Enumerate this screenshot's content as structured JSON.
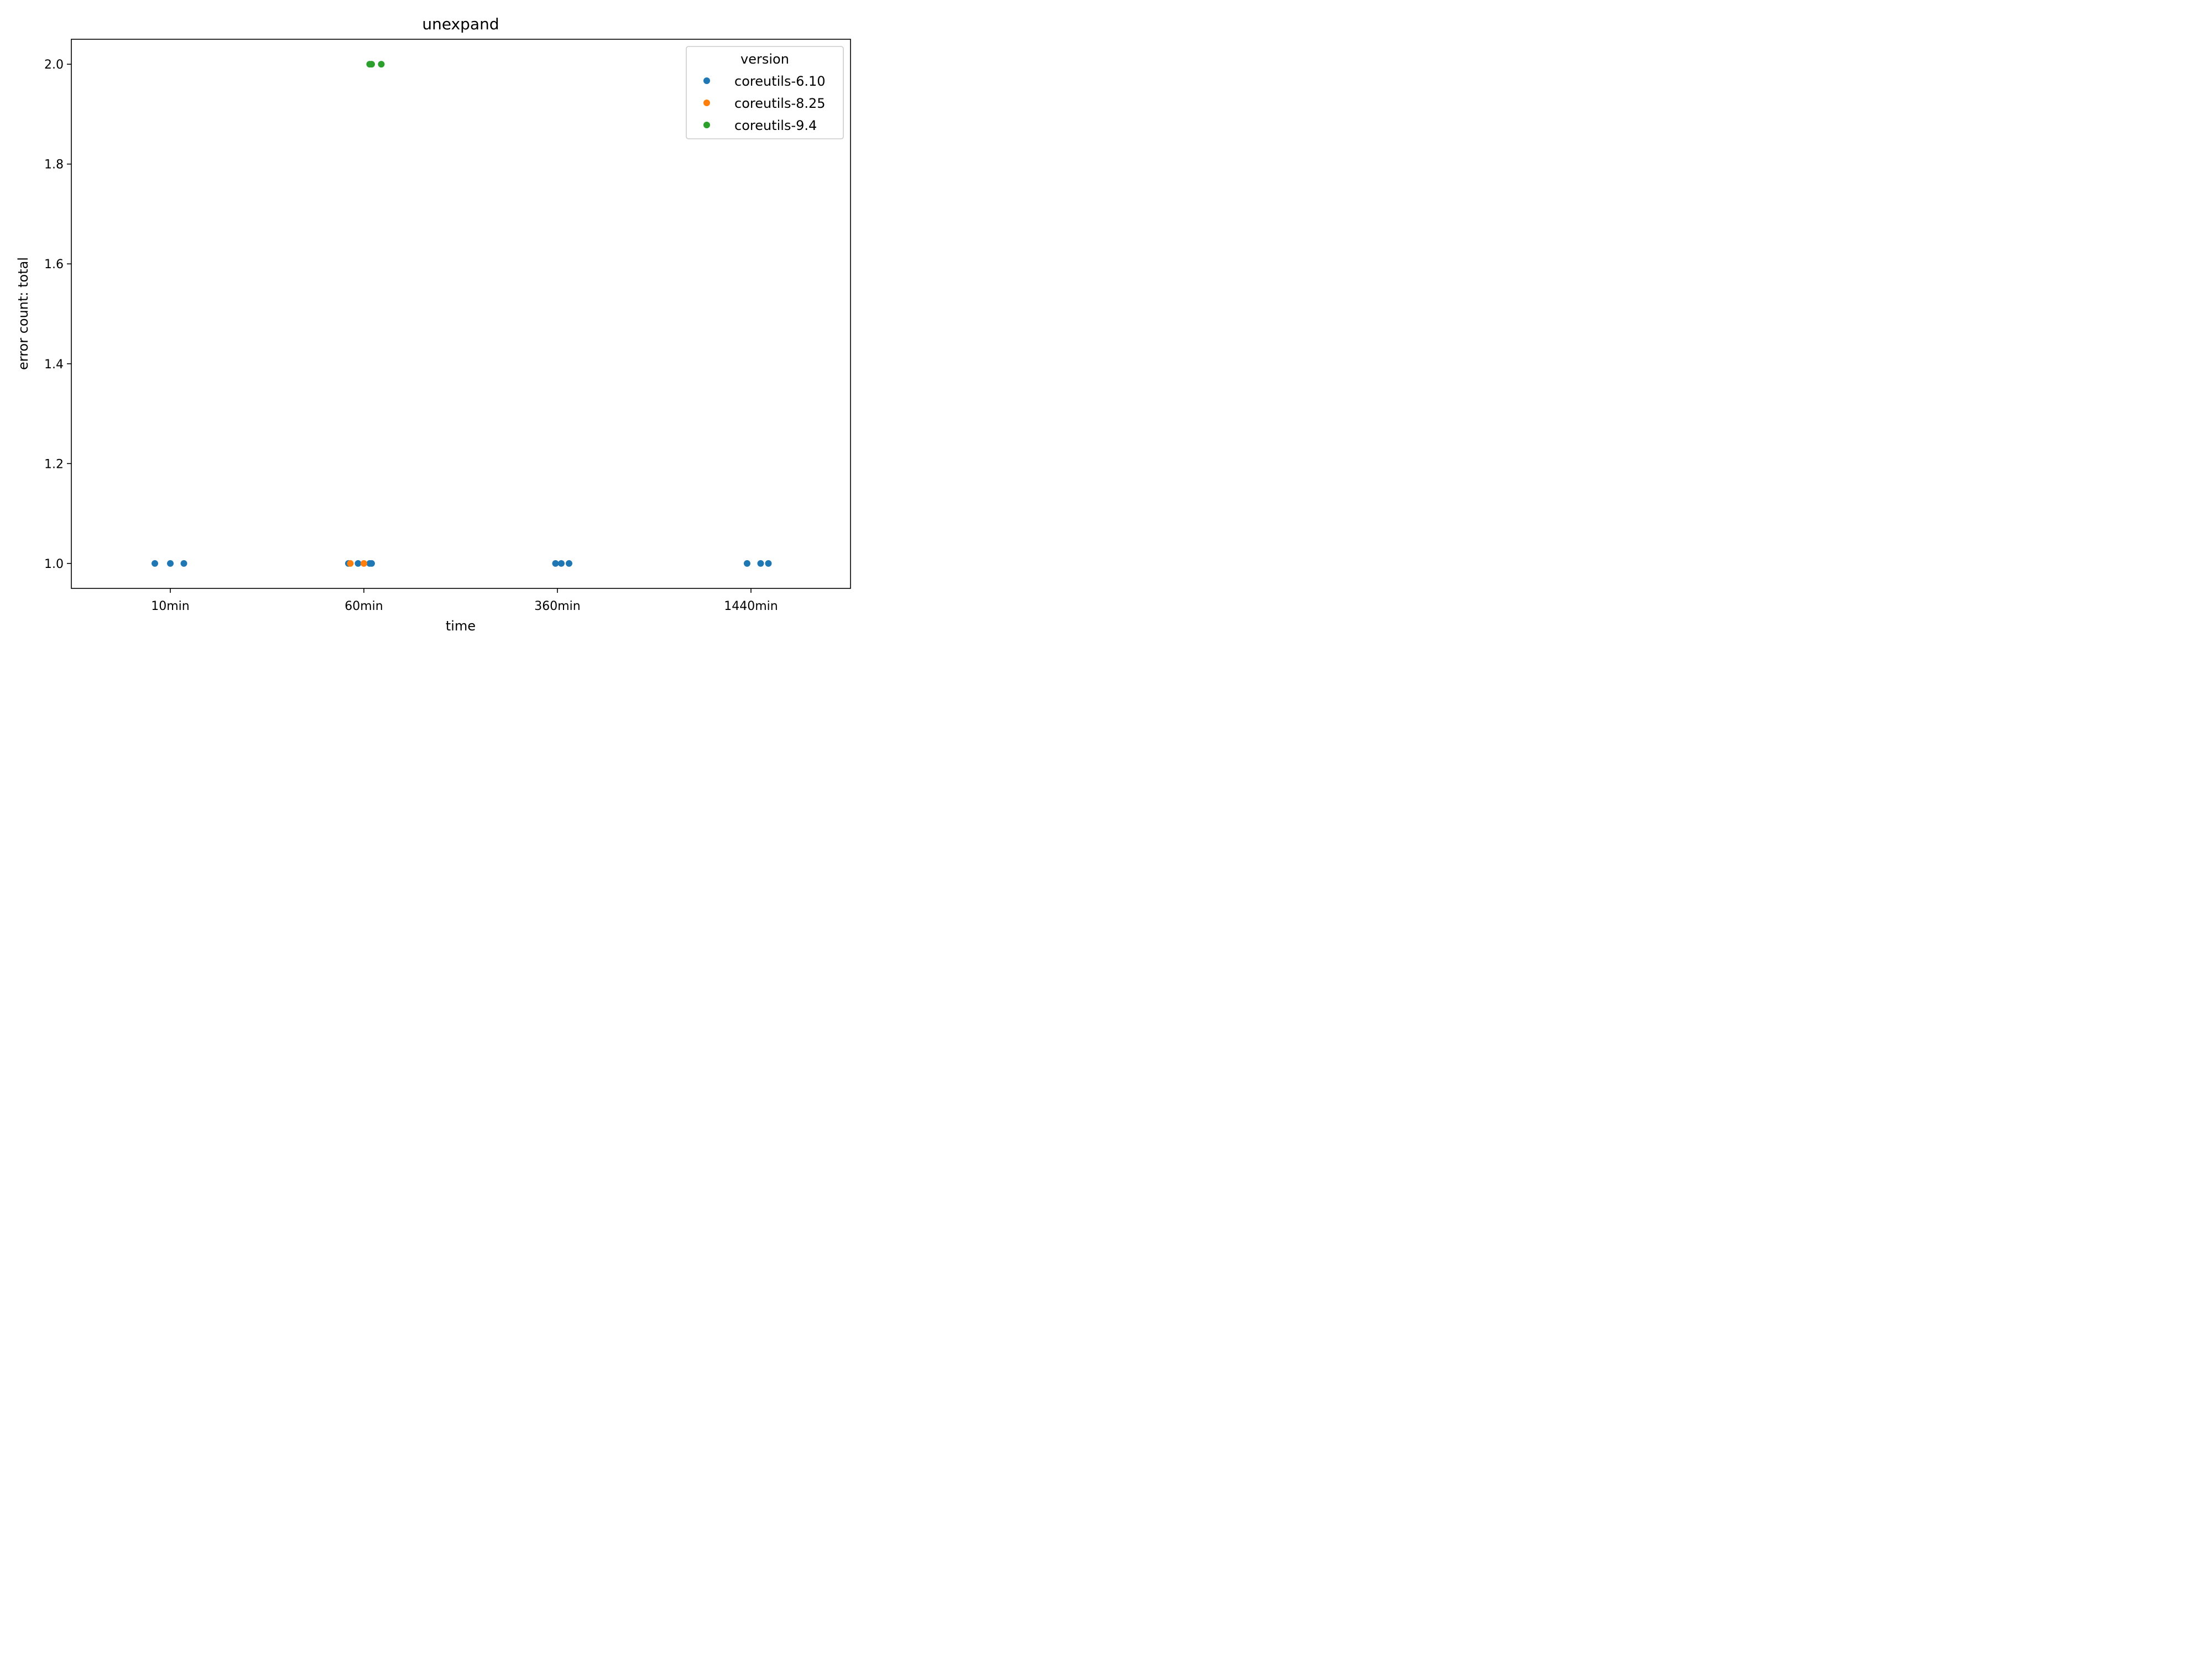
{
  "chart_data": {
    "type": "scatter",
    "title": "unexpand",
    "xlabel": "time",
    "ylabel": "error count: total",
    "categories": [
      "10min",
      "60min",
      "360min",
      "1440min"
    ],
    "yticks": [
      "1.0",
      "1.2",
      "1.4",
      "1.6",
      "1.8",
      "2.0"
    ],
    "ylim": [
      0.95,
      2.05
    ],
    "grid": false,
    "legend": {
      "title": "version",
      "placement": "top-right"
    },
    "series": [
      {
        "name": "coreutils-6.10",
        "color": "#1f77b4",
        "points": [
          {
            "x": "10min",
            "jitter": -0.08,
            "y": 1.0
          },
          {
            "x": "10min",
            "jitter": 0.0,
            "y": 1.0
          },
          {
            "x": "10min",
            "jitter": 0.07,
            "y": 1.0
          },
          {
            "x": "60min",
            "jitter": -0.08,
            "y": 1.0
          },
          {
            "x": "60min",
            "jitter": -0.03,
            "y": 1.0
          },
          {
            "x": "60min",
            "jitter": 0.03,
            "y": 1.0
          },
          {
            "x": "60min",
            "jitter": 0.04,
            "y": 1.0
          },
          {
            "x": "360min",
            "jitter": -0.01,
            "y": 1.0
          },
          {
            "x": "360min",
            "jitter": 0.02,
            "y": 1.0
          },
          {
            "x": "360min",
            "jitter": 0.06,
            "y": 1.0
          },
          {
            "x": "1440min",
            "jitter": -0.02,
            "y": 1.0
          },
          {
            "x": "1440min",
            "jitter": 0.05,
            "y": 1.0
          },
          {
            "x": "1440min",
            "jitter": 0.09,
            "y": 1.0
          }
        ]
      },
      {
        "name": "coreutils-8.25",
        "color": "#ff7f0e",
        "points": [
          {
            "x": "60min",
            "jitter": -0.07,
            "y": 1.0
          },
          {
            "x": "60min",
            "jitter": 0.0,
            "y": 1.0
          }
        ]
      },
      {
        "name": "coreutils-9.4",
        "color": "#2ca02c",
        "points": [
          {
            "x": "60min",
            "jitter": 0.03,
            "y": 2.0
          },
          {
            "x": "60min",
            "jitter": 0.04,
            "y": 2.0
          },
          {
            "x": "60min",
            "jitter": 0.09,
            "y": 2.0
          }
        ]
      }
    ]
  }
}
